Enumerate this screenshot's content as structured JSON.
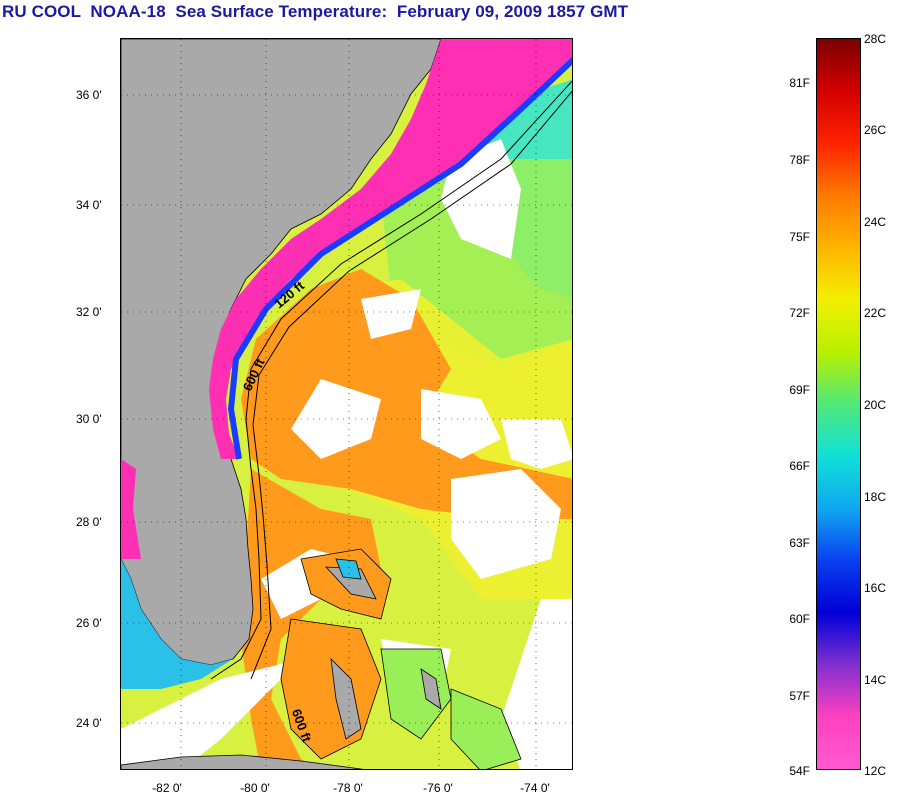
{
  "title": "RU COOL  NOAA-18  Sea Surface Temperature:  February 09, 2009 1857 GMT",
  "map": {
    "lat_labels": [
      "36 0'",
      "34 0'",
      "32 0'",
      "30 0'",
      "28 0'",
      "26 0'",
      "24 0'"
    ],
    "lon_labels": [
      "-82 0'",
      "-80 0'",
      "-78 0'",
      "-76 0'",
      "-74 0'"
    ],
    "contour_labels": [
      "120 ft",
      "600 ft",
      "600 ft"
    ],
    "colors": {
      "land": "#a9a9a9",
      "cloud": "#ffffff",
      "cold_shelf": "#ff2fb4",
      "gulf_stream": "#ff9a1c",
      "offshore": "#c8ee3a",
      "cool_offshore": "#33e0c8"
    }
  },
  "colorbar": {
    "fahrenheit": [
      "81F",
      "78F",
      "75F",
      "72F",
      "69F",
      "66F",
      "63F",
      "60F",
      "57F",
      "54F"
    ],
    "celsius": [
      "28C",
      "26C",
      "24C",
      "22C",
      "20C",
      "18C",
      "16C",
      "14C",
      "12C"
    ],
    "gradient_colors": [
      "#7a0000",
      "#d40000",
      "#ff2200",
      "#ff7a00",
      "#ffb400",
      "#f2f000",
      "#b8f000",
      "#50e878",
      "#10e0d8",
      "#0fa8f0",
      "#0a40f0",
      "#0000d8",
      "#8030d0",
      "#ff40c0",
      "#ff5ad0"
    ]
  }
}
